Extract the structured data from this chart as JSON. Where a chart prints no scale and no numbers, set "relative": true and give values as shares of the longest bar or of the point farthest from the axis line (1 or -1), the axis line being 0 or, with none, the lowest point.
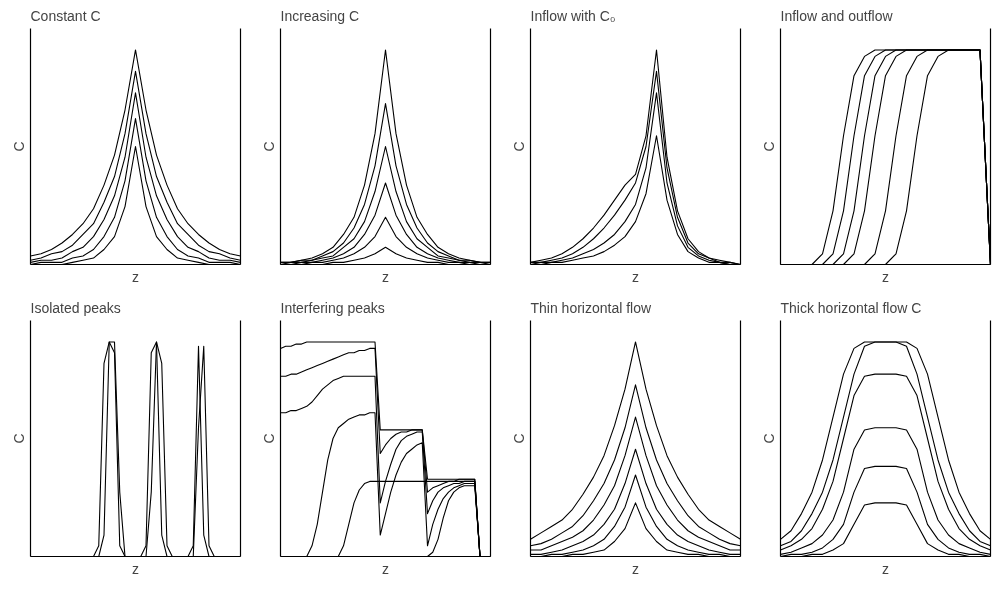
{
  "chart_data": [
    {
      "type": "line",
      "title": "Constant C",
      "xlabel": "z",
      "ylabel": "C",
      "relative": true,
      "tick_labels": false,
      "categories": [
        null,
        null,
        null,
        null,
        null,
        null,
        null,
        null,
        null,
        null,
        null,
        null,
        null,
        null,
        null,
        null,
        null,
        null,
        null,
        null,
        null
      ],
      "series": [
        {
          "color": "#000000",
          "values": [
            0.04,
            0.05,
            0.07,
            0.1,
            0.14,
            0.19,
            0.26,
            0.37,
            0.51,
            0.72,
            1,
            0.72,
            0.51,
            0.37,
            0.26,
            0.19,
            0.14,
            0.1,
            0.07,
            0.05,
            0.04
          ]
        },
        {
          "color": "#000000",
          "values": [
            0.02,
            0.03,
            0.05,
            0.06,
            0.09,
            0.14,
            0.19,
            0.29,
            0.41,
            0.61,
            0.9,
            0.61,
            0.41,
            0.29,
            0.19,
            0.14,
            0.09,
            0.06,
            0.05,
            0.03,
            0.02
          ]
        },
        {
          "color": "#000000",
          "values": [
            0.01,
            0.02,
            0.02,
            0.03,
            0.06,
            0.08,
            0.13,
            0.21,
            0.32,
            0.5,
            0.8,
            0.5,
            0.32,
            0.21,
            0.13,
            0.08,
            0.06,
            0.03,
            0.02,
            0.02,
            0.01
          ]
        },
        {
          "color": "#000000",
          "values": [
            0,
            0.01,
            0.01,
            0.01,
            0.03,
            0.04,
            0.07,
            0.13,
            0.22,
            0.39,
            0.68,
            0.39,
            0.22,
            0.13,
            0.07,
            0.04,
            0.03,
            0.01,
            0.01,
            0.01,
            0
          ]
        },
        {
          "color": "#000000",
          "values": [
            0,
            0,
            0,
            0,
            0.01,
            0.02,
            0.03,
            0.07,
            0.13,
            0.27,
            0.55,
            0.27,
            0.13,
            0.07,
            0.03,
            0.02,
            0.01,
            0,
            0,
            0,
            0
          ]
        }
      ]
    },
    {
      "type": "line",
      "title": "Increasing C",
      "xlabel": "z",
      "ylabel": "C",
      "relative": true,
      "tick_labels": false,
      "categories": [
        null,
        null,
        null,
        null,
        null,
        null,
        null,
        null,
        null,
        null,
        null,
        null,
        null,
        null,
        null,
        null,
        null,
        null,
        null,
        null,
        null
      ],
      "series": [
        {
          "color": "#000000",
          "values": [
            0.01,
            0.01,
            0.02,
            0.03,
            0.05,
            0.08,
            0.14,
            0.22,
            0.37,
            0.61,
            1,
            0.61,
            0.37,
            0.22,
            0.14,
            0.08,
            0.05,
            0.03,
            0.02,
            0.01,
            0.01
          ]
        },
        {
          "color": "#000000",
          "values": [
            0.01,
            0.01,
            0.02,
            0.02,
            0.04,
            0.06,
            0.1,
            0.17,
            0.28,
            0.46,
            0.75,
            0.46,
            0.28,
            0.17,
            0.1,
            0.06,
            0.04,
            0.02,
            0.02,
            0.01,
            0.01
          ]
        },
        {
          "color": "#000000",
          "values": [
            0,
            0.01,
            0.01,
            0.02,
            0.03,
            0.04,
            0.08,
            0.12,
            0.2,
            0.34,
            0.55,
            0.34,
            0.2,
            0.12,
            0.08,
            0.04,
            0.03,
            0.02,
            0.01,
            0.01,
            0
          ]
        },
        {
          "color": "#000000",
          "values": [
            0,
            0,
            0.01,
            0.01,
            0.02,
            0.03,
            0.05,
            0.08,
            0.14,
            0.23,
            0.38,
            0.23,
            0.14,
            0.08,
            0.05,
            0.03,
            0.02,
            0.01,
            0.01,
            0,
            0
          ]
        },
        {
          "color": "#000000",
          "values": [
            0,
            0,
            0,
            0.01,
            0.01,
            0.02,
            0.03,
            0.05,
            0.08,
            0.13,
            0.22,
            0.13,
            0.08,
            0.05,
            0.03,
            0.02,
            0.01,
            0.01,
            0,
            0,
            0
          ]
        },
        {
          "color": "#000000",
          "values": [
            0,
            0,
            0,
            0,
            0,
            0.01,
            0.01,
            0.02,
            0.03,
            0.05,
            0.08,
            0.05,
            0.03,
            0.02,
            0.01,
            0.01,
            0,
            0,
            0,
            0,
            0
          ]
        }
      ]
    },
    {
      "type": "line",
      "title": "Inflow with C₀",
      "xlabel": "z",
      "ylabel": "C",
      "relative": true,
      "tick_labels": false,
      "categories": [
        null,
        null,
        null,
        null,
        null,
        null,
        null,
        null,
        null,
        null,
        null,
        null,
        null,
        null,
        null,
        null,
        null,
        null,
        null,
        null,
        null
      ],
      "series": [
        {
          "color": "#000000",
          "values": [
            0.01,
            0.02,
            0.03,
            0.05,
            0.08,
            0.12,
            0.17,
            0.23,
            0.3,
            0.37,
            0.42,
            0.6,
            1,
            0.5,
            0.25,
            0.12,
            0.06,
            0.03,
            0.02,
            0.01,
            0
          ]
        },
        {
          "color": "#000000",
          "values": [
            0.01,
            0.01,
            0.02,
            0.03,
            0.05,
            0.08,
            0.12,
            0.17,
            0.23,
            0.3,
            0.38,
            0.55,
            0.9,
            0.45,
            0.22,
            0.1,
            0.05,
            0.03,
            0.01,
            0.01,
            0
          ]
        },
        {
          "color": "#000000",
          "values": [
            0,
            0.01,
            0.01,
            0.02,
            0.03,
            0.05,
            0.07,
            0.1,
            0.14,
            0.2,
            0.28,
            0.45,
            0.8,
            0.38,
            0.18,
            0.08,
            0.04,
            0.02,
            0.01,
            0,
            0
          ]
        },
        {
          "color": "#000000",
          "values": [
            0,
            0,
            0.01,
            0.01,
            0.02,
            0.03,
            0.04,
            0.06,
            0.09,
            0.13,
            0.2,
            0.33,
            0.6,
            0.3,
            0.14,
            0.06,
            0.03,
            0.01,
            0.01,
            0,
            0
          ]
        }
      ]
    },
    {
      "type": "line",
      "title": "Inflow and outflow",
      "xlabel": "z",
      "ylabel": "C",
      "relative": true,
      "tick_labels": false,
      "categories": [
        null,
        null,
        null,
        null,
        null,
        null,
        null,
        null,
        null,
        null,
        null,
        null,
        null,
        null,
        null,
        null,
        null,
        null,
        null,
        null,
        null
      ],
      "series": [
        {
          "color": "#000000",
          "values": [
            0,
            0,
            0,
            0,
            0.05,
            0.25,
            0.6,
            0.88,
            0.97,
            1,
            1,
            1,
            1,
            1,
            1,
            1,
            1,
            1,
            1,
            1,
            0
          ]
        },
        {
          "color": "#000000",
          "values": [
            0,
            0,
            0,
            0,
            0,
            0.05,
            0.25,
            0.6,
            0.88,
            0.97,
            1,
            1,
            1,
            1,
            1,
            1,
            1,
            1,
            1,
            1,
            0
          ]
        },
        {
          "color": "#000000",
          "values": [
            0,
            0,
            0,
            0,
            0,
            0,
            0.05,
            0.25,
            0.6,
            0.88,
            0.97,
            1,
            1,
            1,
            1,
            1,
            1,
            1,
            1,
            1,
            0
          ]
        },
        {
          "color": "#000000",
          "values": [
            0,
            0,
            0,
            0,
            0,
            0,
            0,
            0.05,
            0.25,
            0.6,
            0.88,
            0.97,
            1,
            1,
            1,
            1,
            1,
            1,
            1,
            1,
            0
          ]
        },
        {
          "color": "#000000",
          "values": [
            0,
            0,
            0,
            0,
            0,
            0,
            0,
            0,
            0,
            0.05,
            0.25,
            0.6,
            0.88,
            0.97,
            1,
            1,
            1,
            1,
            1,
            1,
            0
          ]
        },
        {
          "color": "#000000",
          "values": [
            0,
            0,
            0,
            0,
            0,
            0,
            0,
            0,
            0,
            0,
            0,
            0.05,
            0.25,
            0.6,
            0.88,
            0.97,
            1,
            1,
            1,
            1,
            0
          ]
        }
      ]
    },
    {
      "type": "line",
      "title": "Isolated peaks",
      "xlabel": "z",
      "ylabel": "C",
      "relative": true,
      "tick_labels": false,
      "categories": [
        null,
        null,
        null,
        null,
        null,
        null,
        null,
        null,
        null,
        null,
        null,
        null,
        null,
        null,
        null,
        null,
        null,
        null,
        null,
        null,
        null,
        null,
        null,
        null,
        null,
        null,
        null,
        null,
        null,
        null,
        null,
        null,
        null,
        null,
        null,
        null,
        null,
        null,
        null,
        null,
        null
      ],
      "series": [
        {
          "color": "#000000",
          "values": [
            0,
            0,
            0,
            0,
            0,
            0,
            0,
            0,
            0,
            0,
            0,
            0,
            0,
            0.05,
            0.9,
            1,
            0.95,
            0.05,
            0,
            0,
            0,
            0,
            0.05,
            0.95,
            1,
            0.1,
            0,
            0,
            0,
            0,
            0,
            0.05,
            0.98,
            0.1,
            0,
            0,
            0,
            0,
            0,
            0,
            0
          ]
        },
        {
          "color": "#000000",
          "values": [
            0,
            0,
            0,
            0,
            0,
            0,
            0,
            0,
            0,
            0,
            0,
            0,
            0,
            0,
            0.1,
            1,
            1,
            0.3,
            0,
            0,
            0,
            0,
            0,
            0.3,
            1,
            0.9,
            0.05,
            0,
            0,
            0,
            0,
            0,
            0.6,
            0.98,
            0.05,
            0,
            0,
            0,
            0,
            0,
            0
          ]
        }
      ]
    },
    {
      "type": "line",
      "title": "Interfering peaks",
      "xlabel": "z",
      "ylabel": "C",
      "relative": true,
      "tick_labels": false,
      "categories": [
        null,
        null,
        null,
        null,
        null,
        null,
        null,
        null,
        null,
        null,
        null,
        null,
        null,
        null,
        null,
        null,
        null,
        null,
        null,
        null,
        null,
        null,
        null,
        null,
        null,
        null,
        null,
        null,
        null,
        null,
        null,
        null,
        null,
        null,
        null,
        null,
        null,
        null,
        null,
        null,
        null
      ],
      "series": [
        {
          "color": "#000000",
          "values": [
            0.97,
            0.98,
            0.98,
            0.99,
            0.99,
            1,
            1,
            1,
            1,
            1,
            1,
            1,
            1,
            1,
            1,
            1,
            1,
            1,
            1,
            0.59,
            0.59,
            0.59,
            0.59,
            0.59,
            0.59,
            0.59,
            0.59,
            0.59,
            0.36,
            0.36,
            0.36,
            0.36,
            0.36,
            0.36,
            0.36,
            0.36,
            0.36,
            0.36,
            0,
            0,
            0
          ]
        },
        {
          "color": "#000000",
          "values": [
            0.84,
            0.84,
            0.85,
            0.85,
            0.86,
            0.87,
            0.88,
            0.89,
            0.9,
            0.91,
            0.92,
            0.93,
            0.94,
            0.95,
            0.95,
            0.96,
            0.96,
            0.97,
            0.97,
            0.48,
            0.52,
            0.55,
            0.57,
            0.58,
            0.58,
            0.59,
            0.59,
            0.59,
            0.3,
            0.32,
            0.33,
            0.34,
            0.35,
            0.35,
            0.36,
            0.36,
            0.36,
            0.36,
            0,
            0,
            0
          ]
        },
        {
          "color": "#000000",
          "values": [
            0.67,
            0.67,
            0.68,
            0.68,
            0.69,
            0.7,
            0.72,
            0.75,
            0.78,
            0.8,
            0.82,
            0.83,
            0.84,
            0.84,
            0.84,
            0.84,
            0.84,
            0.84,
            0.84,
            0.25,
            0.35,
            0.43,
            0.5,
            0.54,
            0.56,
            0.57,
            0.58,
            0.58,
            0.2,
            0.26,
            0.3,
            0.32,
            0.33,
            0.34,
            0.34,
            0.35,
            0.35,
            0.35,
            0,
            0,
            0
          ]
        },
        {
          "color": "#000000",
          "values": [
            0,
            0,
            0,
            0,
            0,
            0,
            0.05,
            0.15,
            0.3,
            0.45,
            0.55,
            0.6,
            0.62,
            0.64,
            0.65,
            0.66,
            0.66,
            0.67,
            0.67,
            0.1,
            0.2,
            0.3,
            0.38,
            0.44,
            0.48,
            0.5,
            0.52,
            0.53,
            0.05,
            0.15,
            0.22,
            0.27,
            0.3,
            0.32,
            0.33,
            0.34,
            0.34,
            0.34,
            0,
            0,
            0
          ]
        },
        {
          "color": "#000000",
          "values": [
            0,
            0,
            0,
            0,
            0,
            0,
            0,
            0,
            0,
            0,
            0,
            0,
            0.05,
            0.15,
            0.25,
            0.31,
            0.34,
            0.35,
            0.35,
            0.35,
            0.35,
            0.35,
            0.35,
            0.35,
            0.35,
            0.35,
            0.35,
            0.35,
            0.35,
            0.35,
            0.35,
            0.35,
            0.35,
            0.35,
            0.35,
            0.35,
            0.35,
            0.35,
            0,
            0,
            0
          ]
        },
        {
          "color": "#000000",
          "values": [
            0,
            0,
            0,
            0,
            0,
            0,
            0,
            0,
            0,
            0,
            0,
            0,
            0,
            0,
            0,
            0,
            0,
            0,
            0,
            0,
            0,
            0,
            0,
            0,
            0,
            0,
            0,
            0,
            0,
            0.02,
            0.08,
            0.18,
            0.26,
            0.3,
            0.32,
            0.33,
            0.33,
            0.33,
            0,
            0,
            0
          ]
        }
      ]
    },
    {
      "type": "line",
      "title": "Thin horizontal flow",
      "xlabel": "z",
      "ylabel": "C",
      "relative": true,
      "tick_labels": false,
      "categories": [
        null,
        null,
        null,
        null,
        null,
        null,
        null,
        null,
        null,
        null,
        null,
        null,
        null,
        null,
        null,
        null,
        null,
        null,
        null,
        null,
        null
      ],
      "series": [
        {
          "color": "#000000",
          "values": [
            0.08,
            0.11,
            0.14,
            0.17,
            0.22,
            0.29,
            0.37,
            0.47,
            0.61,
            0.78,
            1,
            0.78,
            0.61,
            0.47,
            0.37,
            0.29,
            0.22,
            0.17,
            0.14,
            0.11,
            0.08
          ]
        },
        {
          "color": "#000000",
          "values": [
            0.05,
            0.06,
            0.08,
            0.11,
            0.14,
            0.19,
            0.26,
            0.34,
            0.45,
            0.6,
            0.8,
            0.6,
            0.45,
            0.34,
            0.26,
            0.19,
            0.14,
            0.11,
            0.08,
            0.06,
            0.05
          ]
        },
        {
          "color": "#000000",
          "values": [
            0.03,
            0.03,
            0.05,
            0.07,
            0.09,
            0.12,
            0.17,
            0.24,
            0.33,
            0.47,
            0.65,
            0.47,
            0.33,
            0.24,
            0.17,
            0.12,
            0.09,
            0.07,
            0.05,
            0.03,
            0.03
          ]
        },
        {
          "color": "#000000",
          "values": [
            0.01,
            0.01,
            0.02,
            0.03,
            0.05,
            0.07,
            0.1,
            0.15,
            0.22,
            0.34,
            0.5,
            0.34,
            0.22,
            0.15,
            0.1,
            0.07,
            0.05,
            0.03,
            0.02,
            0.01,
            0.01
          ]
        },
        {
          "color": "#000000",
          "values": [
            0,
            0,
            0.01,
            0.01,
            0.02,
            0.03,
            0.05,
            0.08,
            0.14,
            0.23,
            0.38,
            0.23,
            0.14,
            0.08,
            0.05,
            0.03,
            0.02,
            0.01,
            0.01,
            0,
            0
          ]
        },
        {
          "color": "#000000",
          "values": [
            0,
            0,
            0,
            0,
            0.01,
            0.01,
            0.02,
            0.03,
            0.07,
            0.13,
            0.25,
            0.13,
            0.07,
            0.03,
            0.02,
            0.01,
            0.01,
            0,
            0,
            0,
            0
          ]
        }
      ]
    },
    {
      "type": "line",
      "title": "Thick horizontal flow C",
      "xlabel": "z",
      "ylabel": "C",
      "relative": true,
      "tick_labels": false,
      "categories": [
        null,
        null,
        null,
        null,
        null,
        null,
        null,
        null,
        null,
        null,
        null,
        null,
        null,
        null,
        null,
        null,
        null,
        null,
        null,
        null,
        null
      ],
      "series": [
        {
          "color": "#000000",
          "values": [
            0.08,
            0.12,
            0.2,
            0.3,
            0.45,
            0.65,
            0.85,
            0.97,
            1,
            1,
            1,
            1,
            1,
            0.97,
            0.85,
            0.65,
            0.45,
            0.3,
            0.2,
            0.12,
            0.08
          ]
        },
        {
          "color": "#000000",
          "values": [
            0.05,
            0.07,
            0.12,
            0.2,
            0.3,
            0.45,
            0.65,
            0.85,
            0.98,
            1,
            1,
            1,
            0.98,
            0.85,
            0.65,
            0.45,
            0.3,
            0.2,
            0.12,
            0.07,
            0.05
          ]
        },
        {
          "color": "#000000",
          "values": [
            0.03,
            0.05,
            0.08,
            0.13,
            0.22,
            0.35,
            0.55,
            0.75,
            0.84,
            0.85,
            0.85,
            0.85,
            0.84,
            0.75,
            0.55,
            0.35,
            0.22,
            0.13,
            0.08,
            0.05,
            0.03
          ]
        },
        {
          "color": "#000000",
          "values": [
            0.01,
            0.02,
            0.04,
            0.06,
            0.1,
            0.17,
            0.3,
            0.5,
            0.59,
            0.6,
            0.6,
            0.6,
            0.59,
            0.5,
            0.3,
            0.17,
            0.1,
            0.06,
            0.04,
            0.02,
            0.01
          ]
        },
        {
          "color": "#000000",
          "values": [
            0,
            0.01,
            0.01,
            0.02,
            0.04,
            0.08,
            0.15,
            0.3,
            0.41,
            0.42,
            0.42,
            0.42,
            0.41,
            0.3,
            0.15,
            0.08,
            0.04,
            0.02,
            0.01,
            0.01,
            0
          ]
        },
        {
          "color": "#000000",
          "values": [
            0,
            0,
            0,
            0.01,
            0.01,
            0.03,
            0.06,
            0.15,
            0.24,
            0.25,
            0.25,
            0.25,
            0.24,
            0.15,
            0.06,
            0.03,
            0.01,
            0.01,
            0,
            0,
            0
          ]
        }
      ]
    }
  ]
}
